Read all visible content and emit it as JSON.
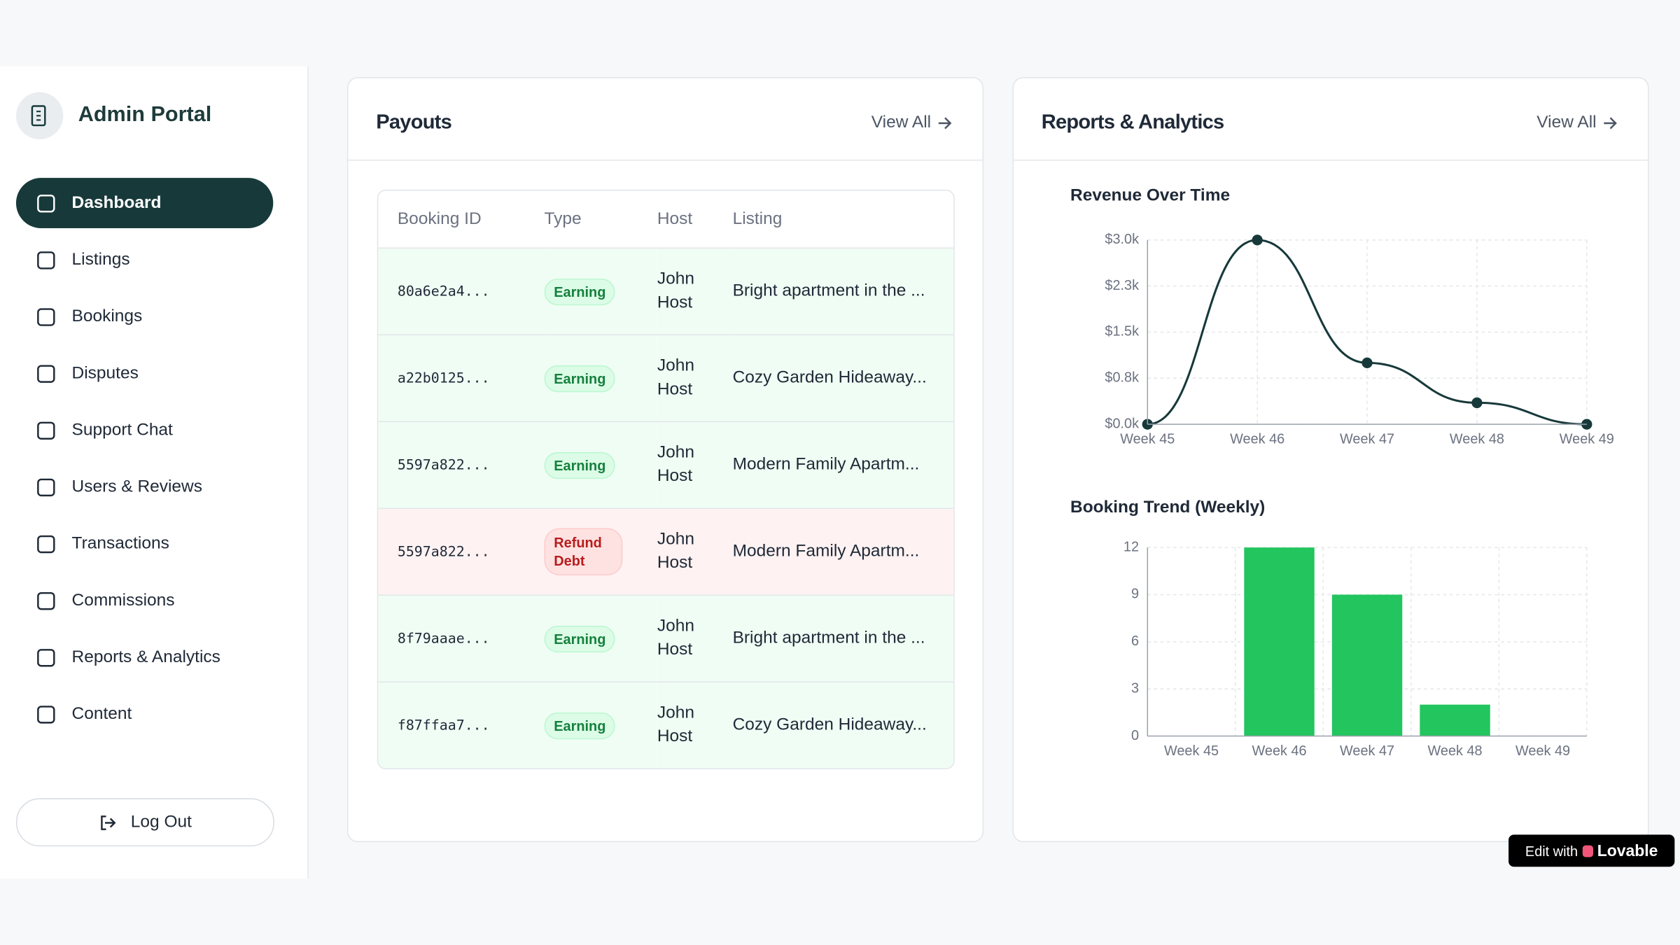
{
  "sidebar": {
    "title": "Admin Portal",
    "nav": [
      "Dashboard",
      "Listings",
      "Bookings",
      "Disputes",
      "Support Chat",
      "Users & Reviews",
      "Transactions",
      "Commissions",
      "Reports & Analytics",
      "Content"
    ],
    "logout": "Log Out"
  },
  "payouts": {
    "title": "Payouts",
    "view_all": "View All",
    "table": {
      "columns": [
        "Booking ID",
        "Type",
        "Host",
        "Listing"
      ],
      "rows": [
        [
          "80a6e2a4...",
          "Earning",
          "John Host",
          "Bright apartment in the ..."
        ],
        [
          "a22b0125...",
          "Earning",
          "John Host",
          "Cozy Garden Hideaway..."
        ],
        [
          "5597a822...",
          "Earning",
          "John Host",
          "Modern Family Apartm..."
        ],
        [
          "5597a822...",
          "Refund Debt",
          "John Host",
          "Modern Family Apartm..."
        ],
        [
          "8f79aaae...",
          "Earning",
          "John Host",
          "Bright apartment in the ..."
        ],
        [
          "f87ffaa7...",
          "Earning",
          "John Host",
          "Cozy Garden Hideaway..."
        ]
      ]
    }
  },
  "reports": {
    "title": "Reports & Analytics",
    "view_all": "View All"
  },
  "chart_data": [
    {
      "type": "line",
      "title": "Revenue Over Time",
      "categories": [
        "Week 45",
        "Week 46",
        "Week 47",
        "Week 48",
        "Week 49"
      ],
      "values": [
        0,
        3000,
        1000,
        350,
        0
      ],
      "color": "#17393a",
      "ylim": [
        0,
        3000
      ],
      "yticks": [
        {
          "value": 0,
          "label": "$0.0k"
        },
        {
          "value": 750,
          "label": "$0.8k"
        },
        {
          "value": 1500,
          "label": "$1.5k"
        },
        {
          "value": 2250,
          "label": "$2.3k"
        },
        {
          "value": 3000,
          "label": "$3.0k"
        }
      ],
      "grid": true
    },
    {
      "type": "bar",
      "title": "Booking Trend (Weekly)",
      "categories": [
        "Week 45",
        "Week 46",
        "Week 47",
        "Week 48",
        "Week 49"
      ],
      "values": [
        0,
        12,
        9,
        2,
        0
      ],
      "color": "#22c55e",
      "ylim": [
        0,
        12
      ],
      "yticks": [
        0,
        3,
        6,
        9,
        12
      ],
      "grid": true
    }
  ],
  "badge": {
    "text": "Edit with",
    "brand": "Lovable"
  }
}
